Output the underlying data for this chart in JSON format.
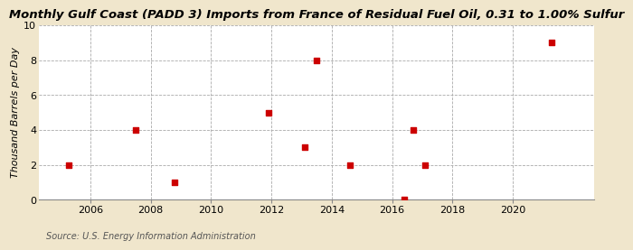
{
  "title": "Monthly Gulf Coast (PADD 3) Imports from France of Residual Fuel Oil, 0.31 to 1.00% Sulfur",
  "ylabel": "Thousand Barrels per Day",
  "source": "Source: U.S. Energy Information Administration",
  "background_color": "#f0e6cc",
  "plot_background_color": "#ffffff",
  "marker_color": "#cc0000",
  "xlim": [
    2004.3,
    2022.7
  ],
  "ylim": [
    0,
    10
  ],
  "xticks": [
    2006,
    2008,
    2010,
    2012,
    2014,
    2016,
    2018,
    2020
  ],
  "yticks": [
    0,
    2,
    4,
    6,
    8,
    10
  ],
  "data_x": [
    2005.3,
    2007.5,
    2008.8,
    2011.9,
    2013.1,
    2013.5,
    2014.6,
    2016.4,
    2016.7,
    2017.1,
    2021.3
  ],
  "data_y": [
    2,
    4,
    1,
    5,
    3,
    8,
    2,
    0,
    4,
    2,
    9
  ],
  "title_fontsize": 9.5,
  "ylabel_fontsize": 8,
  "source_fontsize": 7,
  "tick_fontsize": 8
}
